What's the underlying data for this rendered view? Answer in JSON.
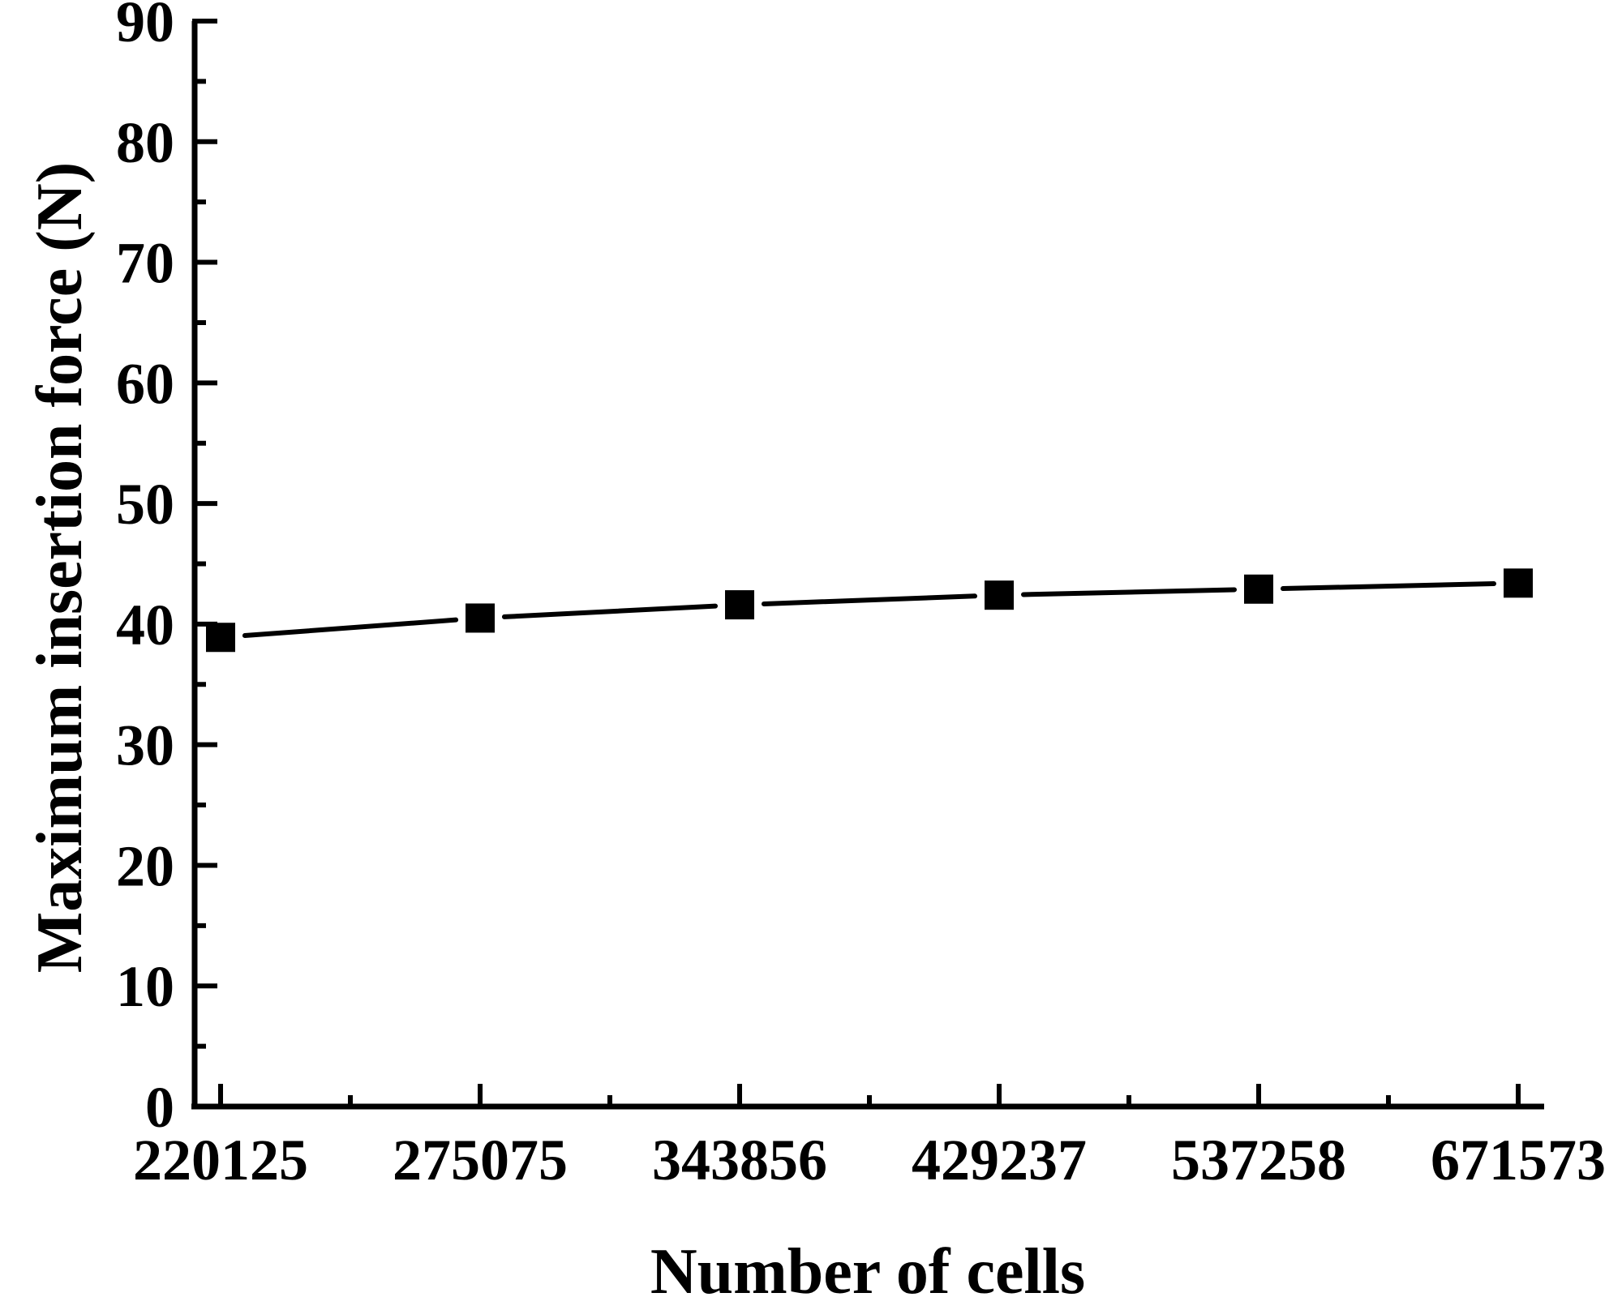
{
  "chart_data": {
    "type": "line",
    "title": "",
    "xlabel": "Number of cells",
    "ylabel": "Maximum insertion force (N)",
    "categories": [
      "220125",
      "275075",
      "343856",
      "429237",
      "537258",
      "671573"
    ],
    "series": [
      {
        "values": [
          38.9,
          40.5,
          41.6,
          42.4,
          42.9,
          43.4
        ],
        "marker": "square",
        "color": "#000000"
      }
    ],
    "ylim": [
      0,
      90
    ],
    "yticks": [
      "0",
      "10",
      "20",
      "30",
      "40",
      "50",
      "60",
      "70",
      "80",
      "90"
    ],
    "grid": false,
    "legend": "none"
  }
}
